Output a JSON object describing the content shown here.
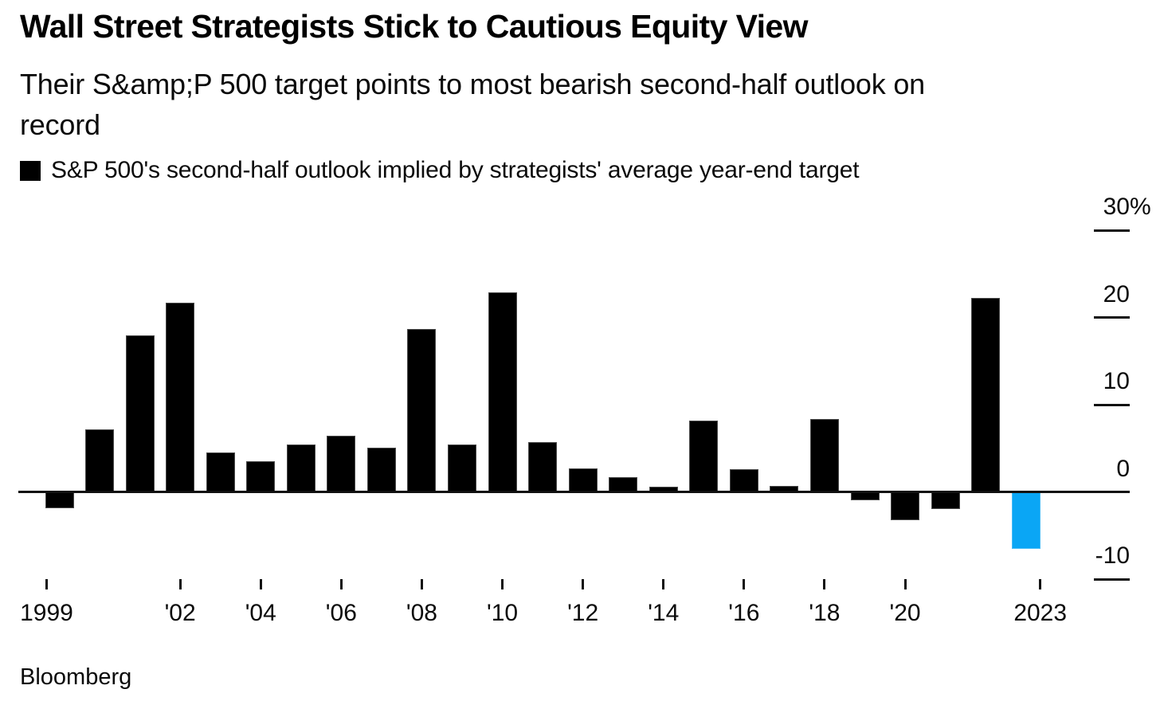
{
  "header": {
    "title": "Wall Street Strategists Stick to Cautious Equity View",
    "subtitle": "Their S&amp;P 500 target points to most bearish second-half outlook on\nrecord"
  },
  "legend": {
    "swatch_color": "#000000",
    "label": "S&P 500's second-half outlook implied by strategists' average year-end target"
  },
  "footer": {
    "source": "Bloomberg"
  },
  "chart_data": {
    "type": "bar",
    "title": "Wall Street Strategists Stick to Cautious Equity View",
    "subtitle": "Their S&amp;P 500 target points to most bearish second-half outlook on record",
    "unit": "percent",
    "categories": [
      1999,
      2000,
      2001,
      2002,
      2003,
      2004,
      2005,
      2006,
      2007,
      2008,
      2009,
      2010,
      2011,
      2012,
      2013,
      2014,
      2015,
      2016,
      2017,
      2018,
      2019,
      2020,
      2021,
      2022,
      2023
    ],
    "values": [
      -1.9,
      7.2,
      17.9,
      21.7,
      4.5,
      3.5,
      5.4,
      6.4,
      5.1,
      18.7,
      5.4,
      22.9,
      5.7,
      2.7,
      1.7,
      0.6,
      8.2,
      2.6,
      0.7,
      8.4,
      -1.0,
      -3.2,
      -2.0,
      22.2,
      -6.5
    ],
    "highlight_category": 2023,
    "colors": {
      "default_bar": "#000000",
      "highlight_bar": "#0AA6F5"
    },
    "y_axis": {
      "side": "right",
      "range": [
        -10,
        30
      ],
      "tick_values": [
        30,
        20,
        10,
        0,
        -10
      ],
      "tick_labels": [
        "30%",
        "20",
        "10",
        "0",
        "-10"
      ]
    },
    "x_axis": {
      "tick_years": [
        1999,
        2002,
        2004,
        2006,
        2008,
        2010,
        2012,
        2014,
        2016,
        2018,
        2020,
        2023
      ],
      "tick_labels": [
        "1999",
        "'02",
        "'04",
        "'06",
        "'08",
        "'10",
        "'12",
        "'14",
        "'16",
        "'18",
        "'20",
        "2023"
      ]
    },
    "grid": false,
    "legend_position": "top-left",
    "legend_label": "S&P 500's second-half outlook implied by strategists' average year-end target",
    "source": "Bloomberg"
  }
}
